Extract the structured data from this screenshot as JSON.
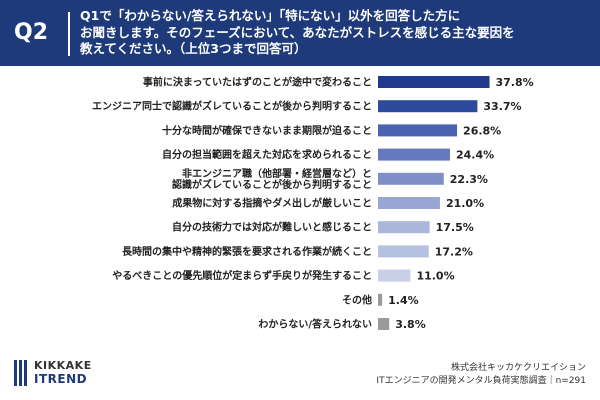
{
  "header": {
    "question_label": "Q2",
    "question_lines": [
      "Q1で「わからない/答えられない」「特にない」以外を回答した方に",
      "お聞きします。そのフェーズにおいて、あなたがストレスを感じる主な要因を",
      "教えてください。（上位3つまで回答可）"
    ]
  },
  "chart_data": {
    "type": "bar",
    "orientation": "horizontal",
    "categories": [
      "事前に決まっていたはずのことが途中で変わること",
      "エンジニア同士で認識がズレていることが後から判明すること",
      "十分な時間が確保できないまま期限が迫ること",
      "自分の担当範囲を超えた対応を求められること",
      "非エンジニア職（他部署・経営層など）と\n認識がズレていることが後から判明すること",
      "成果物に対する指摘やダメ出しが厳しいこと",
      "自分の技術力では対応が難しいと感じること",
      "長時間の集中や精神的緊張を要求される作業が続くこと",
      "やるべきことの優先順位が定まらず手戻りが発生すること",
      "その他",
      "わからない/答えられない"
    ],
    "values": [
      37.8,
      33.7,
      26.8,
      24.4,
      22.3,
      21.0,
      17.5,
      17.2,
      11.0,
      1.4,
      3.8
    ],
    "value_labels": [
      "37.8%",
      "33.7%",
      "26.8%",
      "24.4%",
      "22.3%",
      "21.0%",
      "17.5%",
      "17.2%",
      "11.0%",
      "1.4%",
      "3.8%"
    ],
    "colors": [
      "#1f3a8a",
      "#2e4a9a",
      "#4a63b0",
      "#6479be",
      "#7f90c9",
      "#98a6d3",
      "#aab6da",
      "#b6c0e0",
      "#c8d0e8",
      "#9a9a9a",
      "#9a9a9a"
    ],
    "xlim": [
      0,
      40
    ]
  },
  "footer": {
    "logo_top": "KIKKAKE",
    "logo_bottom": "ITREND",
    "source_line1": "株式会社キッカケクリエイション",
    "source_line2": "ITエンジニアの開発メンタル負荷実態調査｜n=291"
  }
}
